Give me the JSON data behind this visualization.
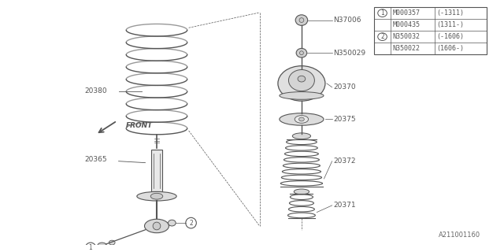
{
  "bg_color": "#ffffff",
  "line_color": "#555555",
  "legend_lines": [
    [
      "1",
      "M000357",
      "(-1311)"
    ],
    [
      "",
      "M000435",
      "(1311-)"
    ],
    [
      "2",
      "N350032",
      "(-1606)"
    ],
    [
      "",
      "N350022",
      "(1606-)"
    ]
  ],
  "watermark": "A211001160",
  "font_size": 6.5,
  "fig_w": 6.4,
  "fig_h": 3.2,
  "dpi": 100
}
